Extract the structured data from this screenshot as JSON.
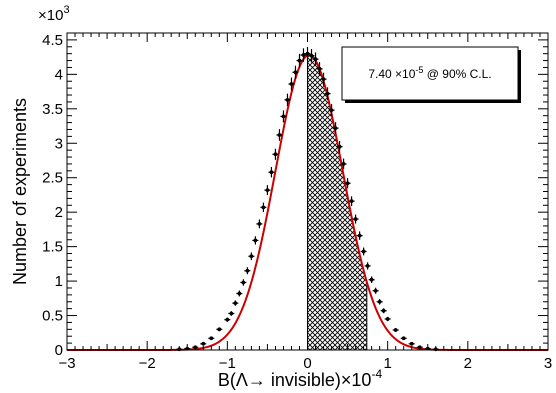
{
  "chart_data": {
    "type": "scatter",
    "xlabel": "B(Λ→ invisible)×10",
    "xlabel_exponent": "-4",
    "ylabel": "Number of experiments",
    "y_multiplier_base": "×10",
    "y_multiplier_exponent": "3",
    "xlim": [
      -3,
      3
    ],
    "ylim": [
      0,
      4.6
    ],
    "x_ticks": [
      -3,
      -2,
      -1,
      0,
      1,
      2,
      3
    ],
    "x_tick_labels": [
      "−3",
      "−2",
      "−1",
      "0",
      "1",
      "2",
      "3"
    ],
    "y_ticks": [
      0,
      0.5,
      1,
      1.5,
      2,
      2.5,
      3,
      3.5,
      4,
      4.5
    ],
    "y_tick_labels": [
      "0",
      "0.5",
      "1",
      "1.5",
      "2",
      "2.5",
      "3",
      "3.5",
      "4",
      "4.5"
    ],
    "legend": {
      "text": "7.40 ×10",
      "exponent": "-5",
      "suffix": " @ 90% C.L.",
      "placement": "top-right"
    },
    "shaded_region": [
      0.0,
      0.74
    ],
    "fit": {
      "name": "gaussian fit",
      "amplitude": 4.28,
      "mean": 0.02,
      "sigma": 0.42,
      "color": "#cc0000"
    },
    "series": [
      {
        "name": "data",
        "x": [
          -1.6,
          -1.5,
          -1.4,
          -1.3,
          -1.2,
          -1.1,
          -1.0,
          -0.95,
          -0.9,
          -0.85,
          -0.8,
          -0.75,
          -0.7,
          -0.65,
          -0.6,
          -0.55,
          -0.5,
          -0.45,
          -0.4,
          -0.35,
          -0.3,
          -0.25,
          -0.2,
          -0.15,
          -0.1,
          -0.05,
          0.0,
          0.05,
          0.1,
          0.15,
          0.2,
          0.25,
          0.3,
          0.35,
          0.4,
          0.45,
          0.5,
          0.55,
          0.6,
          0.65,
          0.7,
          0.75,
          0.8,
          0.85,
          0.9,
          0.95,
          1.0,
          1.1,
          1.2,
          1.3,
          1.4,
          1.5,
          1.6
        ],
        "y": [
          0.01,
          0.02,
          0.04,
          0.09,
          0.17,
          0.3,
          0.44,
          0.53,
          0.68,
          0.82,
          0.98,
          1.15,
          1.36,
          1.59,
          1.83,
          2.07,
          2.32,
          2.58,
          2.84,
          3.12,
          3.39,
          3.63,
          3.86,
          4.03,
          4.2,
          4.28,
          4.3,
          4.27,
          4.22,
          4.08,
          3.93,
          3.72,
          3.48,
          3.22,
          2.95,
          2.7,
          2.42,
          2.16,
          1.9,
          1.66,
          1.43,
          1.22,
          1.02,
          0.86,
          0.7,
          0.57,
          0.45,
          0.29,
          0.17,
          0.09,
          0.04,
          0.02,
          0.01
        ]
      }
    ]
  }
}
